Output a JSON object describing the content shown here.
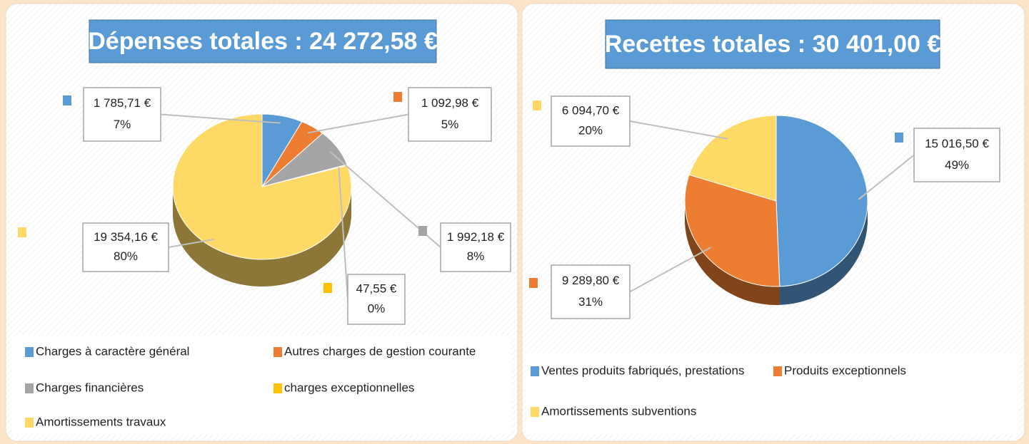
{
  "chart_data": [
    {
      "type": "pie",
      "title": "Dépenses totales : 24 272,58 €",
      "categories": [
        "Charges à caractère général",
        "Autres charges de gestion courante",
        "Charges financières",
        "charges exceptionnelles",
        "Amortissements travaux"
      ],
      "values": [
        1785.71,
        1092.98,
        1992.18,
        47.55,
        19354.16
      ],
      "value_labels": [
        "1 785,71 €",
        "1 092,98 €",
        "1 992,18 €",
        "47,55 €",
        "19 354,16 €"
      ],
      "percent_labels": [
        "7%",
        "5%",
        "8%",
        "0%",
        "80%"
      ],
      "colors": [
        "#5b9bd5",
        "#ed7d31",
        "#a5a5a5",
        "#ffc000",
        "#ffd966"
      ],
      "legend": "bottom"
    },
    {
      "type": "pie",
      "title": "Recettes totales : 30 401,00 €",
      "categories": [
        "Ventes produits fabriqués, prestations",
        "Produits exceptionnels",
        "Amortissements subventions"
      ],
      "values": [
        15016.5,
        9289.8,
        6094.7
      ],
      "value_labels": [
        "15 016,50 €",
        "9 289,80 €",
        "6 094,70 €"
      ],
      "percent_labels": [
        "49%",
        "31%",
        "20%"
      ],
      "colors": [
        "#5b9bd5",
        "#ed7d31",
        "#ffd966"
      ],
      "legend": "bottom"
    }
  ]
}
